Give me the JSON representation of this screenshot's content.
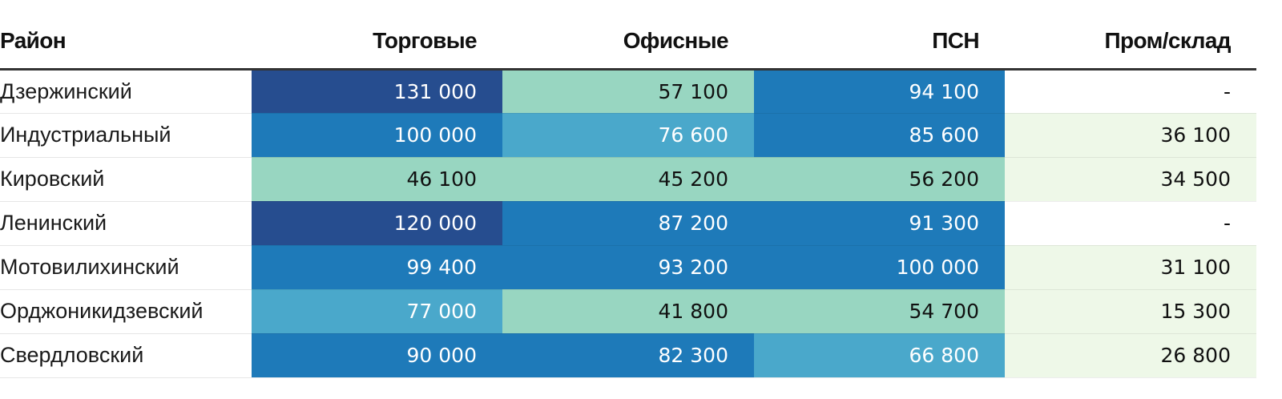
{
  "chart_data": {
    "type": "heatmap",
    "columns": [
      "Район",
      "Торговые",
      "Офисные",
      "ПСН",
      "Пром/склад"
    ],
    "rows": [
      {
        "name": "Дзержинский",
        "values": [
          131000,
          57100,
          94100,
          null
        ],
        "labels": [
          "131 000",
          "57 100",
          "94 100",
          "-"
        ]
      },
      {
        "name": "Индустриальный",
        "values": [
          100000,
          76600,
          85600,
          36100
        ],
        "labels": [
          "100 000",
          "76 600",
          "85 600",
          "36 100"
        ]
      },
      {
        "name": "Кировский",
        "values": [
          46100,
          45200,
          56200,
          34500
        ],
        "labels": [
          "46 100",
          "45 200",
          "56 200",
          "34 500"
        ]
      },
      {
        "name": "Ленинский",
        "values": [
          120000,
          87200,
          91300,
          null
        ],
        "labels": [
          "120 000",
          "87 200",
          "91 300",
          "-"
        ]
      },
      {
        "name": "Мотовилихинский",
        "values": [
          99400,
          93200,
          100000,
          31100
        ],
        "labels": [
          "99 400",
          "93 200",
          "100 000",
          "31 100"
        ]
      },
      {
        "name": "Орджоникидзевский",
        "values": [
          77000,
          41800,
          54700,
          15300
        ],
        "labels": [
          "77 000",
          "41 800",
          "54 700",
          "15 300"
        ]
      },
      {
        "name": "Свердловский",
        "values": [
          90000,
          82300,
          66800,
          26800
        ],
        "labels": [
          "90 000",
          "82 300",
          "66 800",
          "26 800"
        ]
      }
    ],
    "color_scale": {
      "thresholds": [
        40000,
        60000,
        80000,
        110000
      ],
      "colors": [
        "#eef8e8",
        "#98d6c1",
        "#4aa8cb",
        "#1e7ab9",
        "#264d8f"
      ],
      "text_colors": [
        "#111111",
        "#111111",
        "#ffffff",
        "#ffffff",
        "#ffffff"
      ],
      "missing_color": "#ffffff"
    }
  }
}
